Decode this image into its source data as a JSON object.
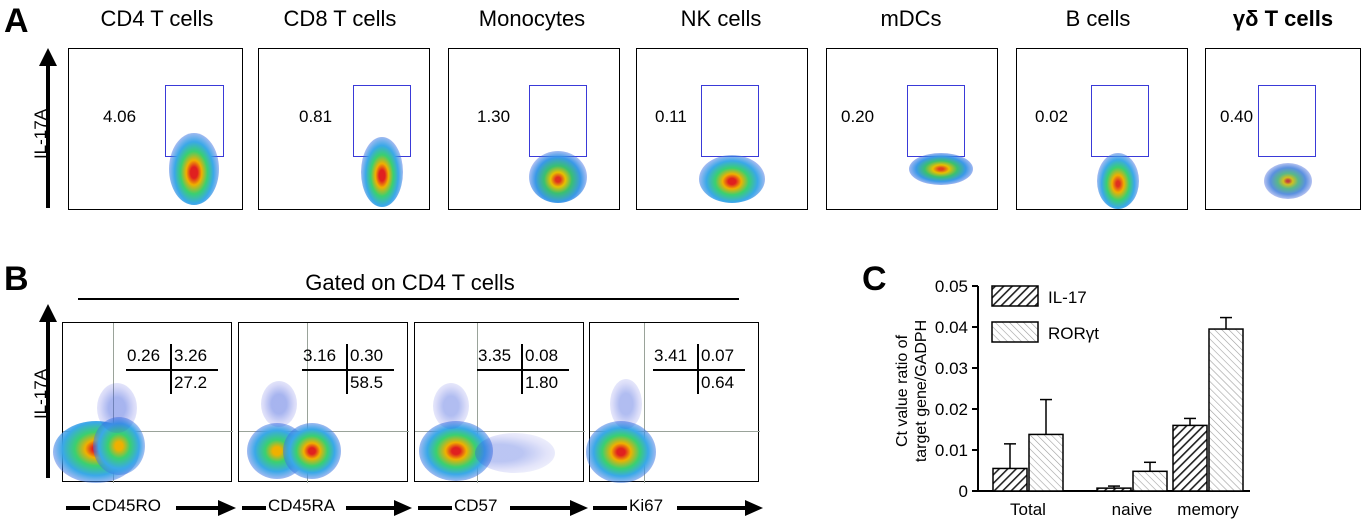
{
  "panel_a": {
    "letter": "A",
    "y_label": "IL-17A",
    "plots": [
      {
        "title": "CD4 T cells",
        "value": "4.06"
      },
      {
        "title": "CD8 T cells",
        "value": "0.81"
      },
      {
        "title": "Monocytes",
        "value": "1.30"
      },
      {
        "title": "NK cells",
        "value": "0.11"
      },
      {
        "title": "mDCs",
        "value": "0.20"
      },
      {
        "title": "B cells",
        "value": "0.02"
      },
      {
        "title": "γδ T cells",
        "value": "0.40"
      }
    ]
  },
  "panel_b": {
    "letter": "B",
    "header": "Gated on CD4 T cells",
    "y_label": "IL-17A",
    "plots": [
      {
        "x_label": "CD45RO",
        "top_left": "0.26",
        "top_right": "3.26",
        "bottom_right": "27.2"
      },
      {
        "x_label": "CD45RA",
        "top_left": "3.16",
        "top_right": "0.30",
        "bottom_right": "58.5"
      },
      {
        "x_label": "CD57",
        "top_left": "3.35",
        "top_right": "0.08",
        "bottom_right": "1.80"
      },
      {
        "x_label": "Ki67",
        "top_left": "3.41",
        "top_right": "0.07",
        "bottom_right": "0.64"
      }
    ]
  },
  "panel_c": {
    "letter": "C",
    "y_label_line1": "Ct value ratio of",
    "y_label_line2": "target gene/GADPH",
    "y_ticks": [
      "0",
      "0.01",
      "0.02",
      "0.03",
      "0.04",
      "0.05"
    ],
    "legend": [
      "IL-17",
      "RORγt"
    ]
  },
  "chart_data": {
    "type": "bar",
    "categories": [
      "Total",
      "naive",
      "memory"
    ],
    "series": [
      {
        "name": "IL-17",
        "values": [
          0.0055,
          0.0007,
          0.016
        ],
        "errors": [
          0.006,
          0.0005,
          0.0017
        ]
      },
      {
        "name": "RORγt",
        "values": [
          0.0138,
          0.0048,
          0.0395
        ],
        "errors": [
          0.0085,
          0.0022,
          0.0028
        ]
      }
    ],
    "xlabel": "",
    "ylabel": "Ct value ratio of target gene/GADPH",
    "ylim": [
      0,
      0.05
    ],
    "legend_position": "top-left"
  }
}
